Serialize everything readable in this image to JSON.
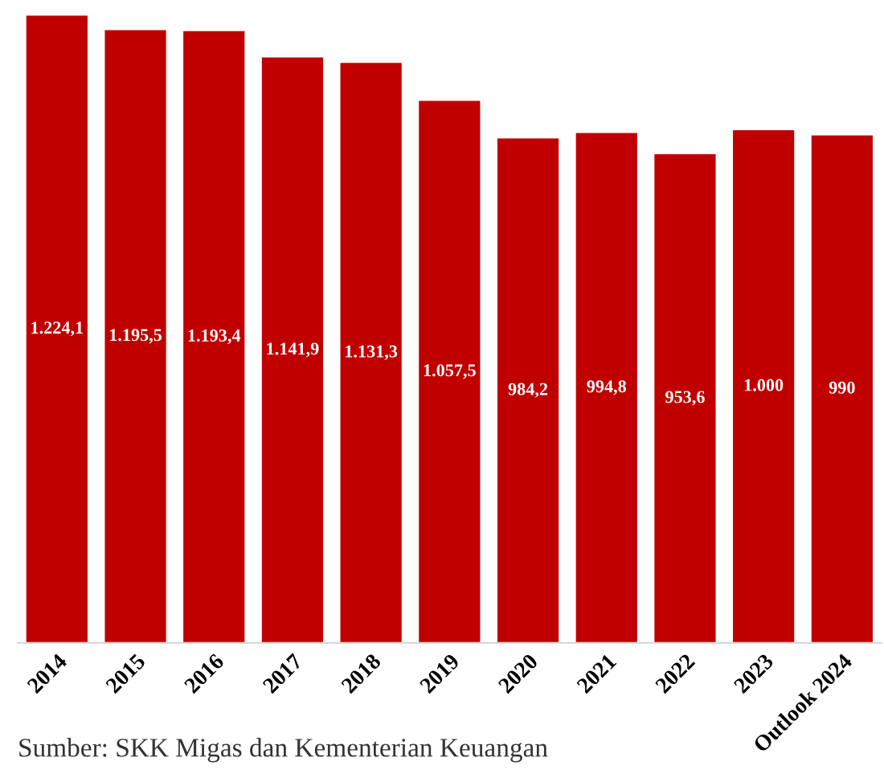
{
  "chart_data": {
    "type": "bar",
    "categories": [
      "2014",
      "2015",
      "2016",
      "2017",
      "2018",
      "2019",
      "2020",
      "2021",
      "2022",
      "2023",
      "Outlook 2024"
    ],
    "values": [
      1224.1,
      1195.5,
      1193.4,
      1141.9,
      1131.3,
      1057.5,
      984.2,
      994.8,
      953.6,
      1000,
      990
    ],
    "value_labels": [
      "1.224,1",
      "1.195,5",
      "1.193,4",
      "1.141,9",
      "1.131,3",
      "1.057,5",
      "984,2",
      "994,8",
      "953,6",
      "1.000",
      "990"
    ],
    "color": "#c00000",
    "grid": false,
    "legend": false,
    "annotations": [
      "Sumber: SKK Migas dan Kementerian Keuangan"
    ]
  }
}
